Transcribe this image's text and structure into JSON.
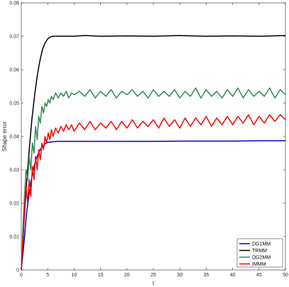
{
  "chart_data": {
    "type": "line",
    "title": "",
    "xlabel": "t",
    "ylabel": "Shape error",
    "xlim": [
      0,
      50
    ],
    "ylim": [
      0,
      0.08
    ],
    "xticks": [
      0,
      5,
      10,
      15,
      20,
      25,
      30,
      35,
      40,
      45,
      50
    ],
    "yticks": [
      0,
      0.01,
      0.02,
      0.03,
      0.04,
      0.05,
      0.06,
      0.07,
      0.08
    ],
    "xtick_labels": [
      "0",
      "5",
      "10",
      "15",
      "20",
      "25",
      "30",
      "35",
      "40",
      "45",
      "50"
    ],
    "ytick_labels": [
      "0",
      "0.01",
      "0.02",
      "0.03",
      "0.04",
      "0.05",
      "0.06",
      "0.07",
      "0.08"
    ],
    "grid": false,
    "legend_position": "bottom-right",
    "series": [
      {
        "name": "DG1MM",
        "color": "#0000cc",
        "x": [
          0,
          0.5,
          1,
          1.5,
          2,
          2.5,
          3,
          3.5,
          4,
          4.5,
          5,
          6,
          7,
          8,
          10,
          15,
          20,
          25,
          30,
          35,
          40,
          45,
          50
        ],
        "y": [
          0,
          0.008,
          0.017,
          0.023,
          0.028,
          0.0315,
          0.034,
          0.0358,
          0.037,
          0.0378,
          0.0382,
          0.0384,
          0.0385,
          0.0385,
          0.0385,
          0.0385,
          0.0385,
          0.0385,
          0.0386,
          0.0386,
          0.0386,
          0.0387,
          0.0387
        ]
      },
      {
        "name": "TRMM",
        "color": "#000000",
        "x": [
          0,
          0.5,
          1,
          1.5,
          2,
          2.5,
          3,
          3.5,
          4,
          4.5,
          5,
          5.5,
          6,
          7,
          8,
          10,
          12,
          15,
          20,
          25,
          30,
          35,
          40,
          45,
          50
        ],
        "y": [
          0,
          0.014,
          0.026,
          0.036,
          0.045,
          0.052,
          0.058,
          0.0625,
          0.066,
          0.068,
          0.0692,
          0.0698,
          0.07,
          0.07,
          0.07,
          0.07,
          0.0702,
          0.07,
          0.0701,
          0.07,
          0.0702,
          0.07,
          0.0701,
          0.07,
          0.0702
        ]
      },
      {
        "name": "DG2MM",
        "color": "#2e8b57",
        "x": [
          0,
          0.3,
          0.6,
          0.9,
          1.2,
          1.5,
          1.8,
          2.1,
          2.4,
          2.7,
          3,
          3.3,
          3.6,
          3.9,
          4.2,
          4.5,
          4.8,
          5.1,
          5.4,
          5.7,
          6,
          6.5,
          7,
          7.5,
          8,
          8.5,
          9,
          9.5,
          10,
          11,
          12,
          13,
          14,
          15,
          16,
          17,
          18,
          19,
          20,
          21,
          22,
          23,
          24,
          25,
          26,
          27,
          28,
          29,
          30,
          31,
          32,
          33,
          34,
          35,
          36,
          37,
          38,
          39,
          40,
          41,
          42,
          43,
          44,
          45,
          46,
          47,
          48,
          49,
          50
        ],
        "y": [
          0,
          0.012,
          0.022,
          0.03,
          0.027,
          0.034,
          0.03,
          0.038,
          0.035,
          0.043,
          0.039,
          0.046,
          0.044,
          0.049,
          0.047,
          0.05,
          0.049,
          0.051,
          0.05,
          0.052,
          0.051,
          0.053,
          0.0515,
          0.053,
          0.052,
          0.0535,
          0.0515,
          0.053,
          0.0525,
          0.0535,
          0.052,
          0.054,
          0.0515,
          0.0535,
          0.052,
          0.054,
          0.0515,
          0.0535,
          0.0525,
          0.054,
          0.052,
          0.0535,
          0.0515,
          0.054,
          0.052,
          0.0535,
          0.052,
          0.054,
          0.0515,
          0.0535,
          0.052,
          0.0545,
          0.0515,
          0.054,
          0.052,
          0.0535,
          0.0515,
          0.054,
          0.052,
          0.0545,
          0.0515,
          0.054,
          0.052,
          0.0535,
          0.052,
          0.0545,
          0.0515,
          0.054,
          0.0525
        ]
      },
      {
        "name": "IMMM",
        "color": "#ff0000",
        "x": [
          0,
          0.3,
          0.6,
          0.9,
          1.2,
          1.5,
          1.8,
          2.1,
          2.4,
          2.7,
          3,
          3.3,
          3.6,
          3.9,
          4.2,
          4.5,
          4.8,
          5.1,
          5.4,
          5.7,
          6,
          6.5,
          7,
          7.5,
          8,
          8.5,
          9,
          9.5,
          10,
          11,
          12,
          13,
          14,
          15,
          16,
          17,
          18,
          19,
          20,
          21,
          22,
          23,
          24,
          25,
          26,
          27,
          28,
          29,
          30,
          31,
          32,
          33,
          34,
          35,
          36,
          37,
          38,
          39,
          40,
          41,
          42,
          43,
          44,
          45,
          46,
          47,
          48,
          49,
          50
        ],
        "y": [
          0,
          0.009,
          0.018,
          0.025,
          0.02,
          0.027,
          0.022,
          0.031,
          0.027,
          0.034,
          0.03,
          0.036,
          0.033,
          0.038,
          0.036,
          0.04,
          0.038,
          0.041,
          0.039,
          0.042,
          0.04,
          0.0425,
          0.041,
          0.043,
          0.0415,
          0.0435,
          0.042,
          0.0435,
          0.0415,
          0.044,
          0.042,
          0.0445,
          0.042,
          0.044,
          0.0425,
          0.0445,
          0.042,
          0.0445,
          0.0425,
          0.045,
          0.0425,
          0.0445,
          0.043,
          0.045,
          0.0425,
          0.0455,
          0.043,
          0.045,
          0.0425,
          0.0455,
          0.043,
          0.0455,
          0.0435,
          0.046,
          0.043,
          0.0455,
          0.0435,
          0.046,
          0.0435,
          0.046,
          0.044,
          0.0465,
          0.0435,
          0.046,
          0.044,
          0.0465,
          0.0445,
          0.0465,
          0.045
        ]
      }
    ]
  }
}
